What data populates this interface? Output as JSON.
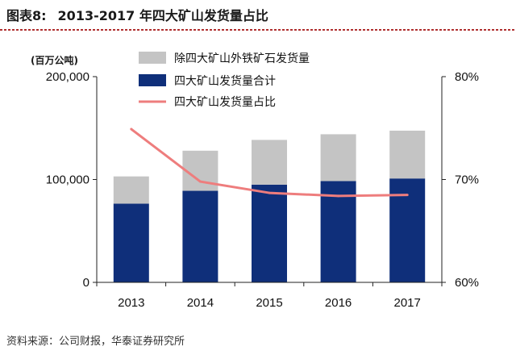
{
  "figure": {
    "label": "图表8:",
    "title": "2013-2017 年四大矿山发货量占比",
    "source": "资料来源：公司财报，华泰证券研究所"
  },
  "chart_data": {
    "type": "bar",
    "stacked": true,
    "unit_label": "(百万公吨)",
    "categories": [
      "2013",
      "2014",
      "2015",
      "2016",
      "2017"
    ],
    "series": [
      {
        "name": "四大矿山发货量合计",
        "kind": "bar",
        "axis": "left",
        "color": "#0f2f7a",
        "values": [
          76500,
          89000,
          95000,
          98500,
          101000
        ]
      },
      {
        "name": "除四大矿山外铁矿石发货量",
        "kind": "bar",
        "axis": "left",
        "color": "#c4c4c4",
        "values": [
          26500,
          39000,
          43500,
          45500,
          46500
        ]
      },
      {
        "name": "四大矿山发货量占比",
        "kind": "line",
        "axis": "right",
        "color": "#ee7d7d",
        "values": [
          74.9,
          69.8,
          68.7,
          68.4,
          68.5
        ]
      }
    ],
    "left_axis": {
      "min": 0,
      "max": 200000,
      "ticks": [
        0,
        100000,
        200000
      ],
      "tick_labels": [
        "0",
        "100,000",
        "200,000"
      ]
    },
    "right_axis": {
      "min": 60,
      "max": 80,
      "ticks": [
        60,
        70,
        80
      ],
      "tick_labels": [
        "60%",
        "70%",
        "80%"
      ]
    },
    "legend_order": [
      "除四大矿山外铁矿石发货量",
      "四大矿山发货量合计",
      "四大矿山发货量占比"
    ],
    "legend_position": "top-center",
    "grid": false
  }
}
